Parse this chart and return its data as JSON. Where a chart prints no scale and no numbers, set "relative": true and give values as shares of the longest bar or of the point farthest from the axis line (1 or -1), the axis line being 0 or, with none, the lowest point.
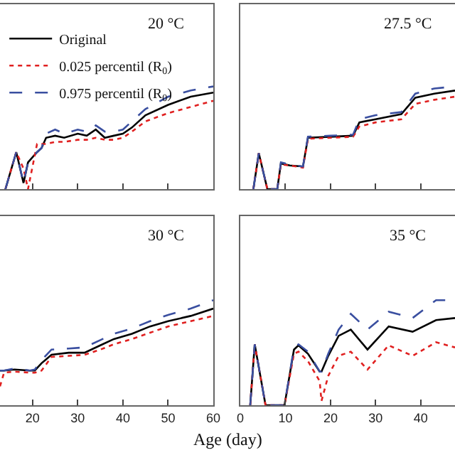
{
  "chart_data": [
    {
      "type": "line",
      "relative": true,
      "xlim": [
        12.8,
        60
      ],
      "xticks": [
        {
          "value": 20,
          "label": null
        },
        {
          "value": 30,
          "label": null
        },
        {
          "value": 40,
          "label": null
        },
        {
          "value": 50,
          "label": null
        },
        {
          "value": 60,
          "label": null
        }
      ],
      "tick_labels": false,
      "legend": "top left",
      "annotations": [
        "20 °C"
      ],
      "x": [
        14,
        16.4,
        18,
        19,
        21,
        22,
        23,
        25,
        27,
        30,
        32,
        34,
        36,
        38,
        40,
        42,
        45,
        50,
        55,
        60
      ],
      "series": [
        {
          "name": "Original",
          "color": "#000000",
          "line_style": "solid",
          "values": [
            0,
            0.36,
            0.06,
            0.26,
            0.36,
            0.4,
            0.5,
            0.52,
            0.5,
            0.54,
            0.52,
            0.58,
            0.5,
            0.52,
            0.54,
            0.6,
            0.72,
            0.82,
            0.9,
            0.94
          ]
        },
        {
          "name": "0.025 percentil (R$_{0}$)",
          "color": "#e02020",
          "line_style": "dotted",
          "values": [
            0,
            0.36,
            0.2,
            0,
            0.44,
            0.44,
            0.44,
            0.46,
            0.46,
            0.48,
            0.48,
            0.5,
            0.48,
            0.48,
            0.5,
            0.56,
            0.66,
            0.74,
            0.8,
            0.86
          ]
        },
        {
          "name": "0.975 percentil (R$_{0}$)",
          "color": "#3a4fa0",
          "line_style": "dashed",
          "values": [
            0,
            0.36,
            0.06,
            0.26,
            0.36,
            0.4,
            0.54,
            0.58,
            0.54,
            0.58,
            0.56,
            0.62,
            0.56,
            0.56,
            0.58,
            0.66,
            0.78,
            0.9,
            0.96,
            1
          ]
        }
      ]
    },
    {
      "type": "line",
      "relative": true,
      "xlim": [
        0,
        47.6
      ],
      "xticks": [
        {
          "value": 0,
          "label": null
        },
        {
          "value": 10,
          "label": null
        },
        {
          "value": 20,
          "label": null
        },
        {
          "value": 30,
          "label": null
        },
        {
          "value": 40,
          "label": null
        }
      ],
      "tick_labels": false,
      "annotations": [
        "27.5 °C"
      ],
      "x": [
        2.9,
        4.1,
        6,
        8.2,
        9,
        11,
        13.9,
        15,
        20,
        25,
        26.4,
        30,
        35.7,
        38.8,
        43,
        47.6
      ],
      "series": [
        {
          "color": "#000000",
          "line_style": "solid",
          "values": [
            0,
            0.35,
            0,
            0,
            0.25,
            0.23,
            0.22,
            0.5,
            0.51,
            0.52,
            0.65,
            0.68,
            0.73,
            0.89,
            0.93,
            0.96
          ]
        },
        {
          "color": "#e02020",
          "line_style": "dotted",
          "values": [
            0,
            0.35,
            0,
            0,
            0.24,
            0.23,
            0.21,
            0.49,
            0.5,
            0.51,
            0.61,
            0.65,
            0.68,
            0.83,
            0.87,
            0.9
          ]
        },
        {
          "color": "#3a4fa0",
          "line_style": "dashed",
          "values": [
            0,
            0.35,
            0,
            0,
            0.26,
            0.24,
            0.22,
            0.51,
            0.52,
            0.53,
            0.68,
            0.72,
            0.75,
            0.93,
            0.98,
            1
          ]
        }
      ]
    },
    {
      "type": "line",
      "relative": true,
      "xlim": [
        12.8,
        60
      ],
      "xticks": [
        20,
        30,
        40,
        50,
        60
      ],
      "tick_labels": "x",
      "annotations": [
        "30 °C"
      ],
      "x": [
        12.8,
        13.7,
        16,
        19.4,
        20.5,
        22,
        24.2,
        28,
        31.5,
        35,
        38,
        42,
        46,
        50,
        55,
        60
      ],
      "series": [
        {
          "color": "#000000",
          "line_style": "solid",
          "values": [
            0.33,
            0.33,
            0.34,
            0.33,
            0.33,
            0.4,
            0.48,
            0.5,
            0.5,
            0.57,
            0.63,
            0.68,
            0.75,
            0.8,
            0.85,
            0.92
          ]
        },
        {
          "color": "#e02020",
          "line_style": "dotted",
          "values": [
            0.18,
            0.31,
            0.32,
            0.31,
            0.31,
            0.33,
            0.46,
            0.47,
            0.48,
            0.53,
            0.58,
            0.63,
            0.69,
            0.75,
            0.8,
            0.85
          ]
        },
        {
          "color": "#3a4fa0",
          "line_style": "dashed",
          "values": [
            0.33,
            0.33,
            0.35,
            0.33,
            0.34,
            0.43,
            0.53,
            0.54,
            0.55,
            0.62,
            0.68,
            0.73,
            0.8,
            0.86,
            0.92,
            1
          ]
        }
      ]
    },
    {
      "type": "line",
      "relative": true,
      "xlim": [
        0,
        47.6
      ],
      "xticks": [
        0,
        10,
        20,
        30,
        40
      ],
      "tick_labels": "x",
      "xlabel": "Age (day)",
      "annotations": [
        "35 °C"
      ],
      "x": [
        2.2,
        3.2,
        5.6,
        9.8,
        11.9,
        12.9,
        15,
        17.6,
        18,
        19.5,
        21.8,
        24.5,
        28.2,
        32.9,
        38.2,
        43.4,
        47.6
      ],
      "series": [
        {
          "color": "#000000",
          "line_style": "solid",
          "values": [
            0,
            0.58,
            0,
            0,
            0.53,
            0.57,
            0.49,
            0.32,
            0.32,
            0.47,
            0.66,
            0.72,
            0.53,
            0.75,
            0.7,
            0.81,
            0.83
          ]
        },
        {
          "color": "#e02020",
          "line_style": "dotted",
          "values": [
            0,
            0.58,
            0,
            0,
            0.49,
            0.51,
            0.42,
            0.23,
            0.04,
            0.28,
            0.47,
            0.51,
            0.34,
            0.57,
            0.47,
            0.6,
            0.55
          ]
        },
        {
          "color": "#3a4fa0",
          "line_style": "dashed",
          "values": [
            0,
            0.58,
            0,
            0,
            0.55,
            0.58,
            0.51,
            0.32,
            0.32,
            0.49,
            0.72,
            0.87,
            0.72,
            0.89,
            0.83,
            1,
            1
          ]
        }
      ]
    }
  ]
}
